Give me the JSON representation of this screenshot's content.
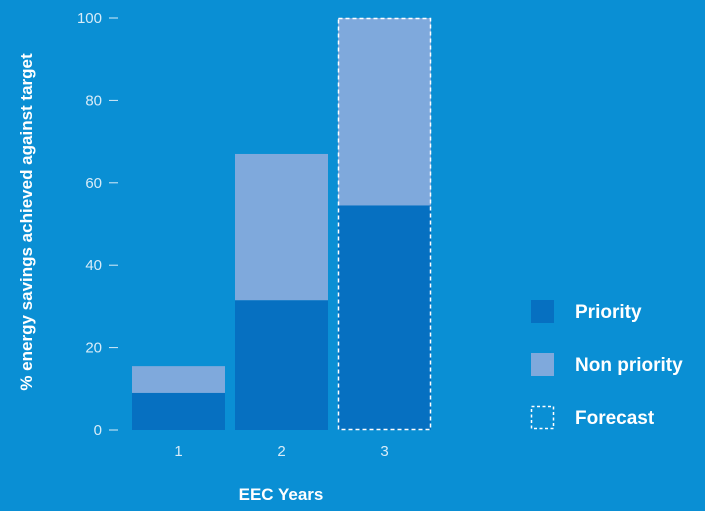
{
  "colors": {
    "background": "#0a8fd4",
    "priority": "#0670c1",
    "non_priority": "#7fa9dc",
    "forecast_outline": "#ffffff"
  },
  "chart_data": {
    "type": "bar",
    "stacked": true,
    "categories": [
      "1",
      "2",
      "3"
    ],
    "series": [
      {
        "name": "Priority",
        "values": [
          9,
          31.5,
          54.5
        ]
      },
      {
        "name": "Non priority",
        "values": [
          6.5,
          35.5,
          45.5
        ]
      }
    ],
    "forecast_categories": [
      "3"
    ],
    "forecast_label": "Forecast",
    "title": "",
    "xlabel": "EEC Years",
    "ylabel": "% energy savings achieved against target",
    "ylim": [
      0,
      100
    ],
    "yticks": [
      0,
      20,
      40,
      60,
      80,
      100
    ],
    "grid": false,
    "legend_position": "right"
  }
}
